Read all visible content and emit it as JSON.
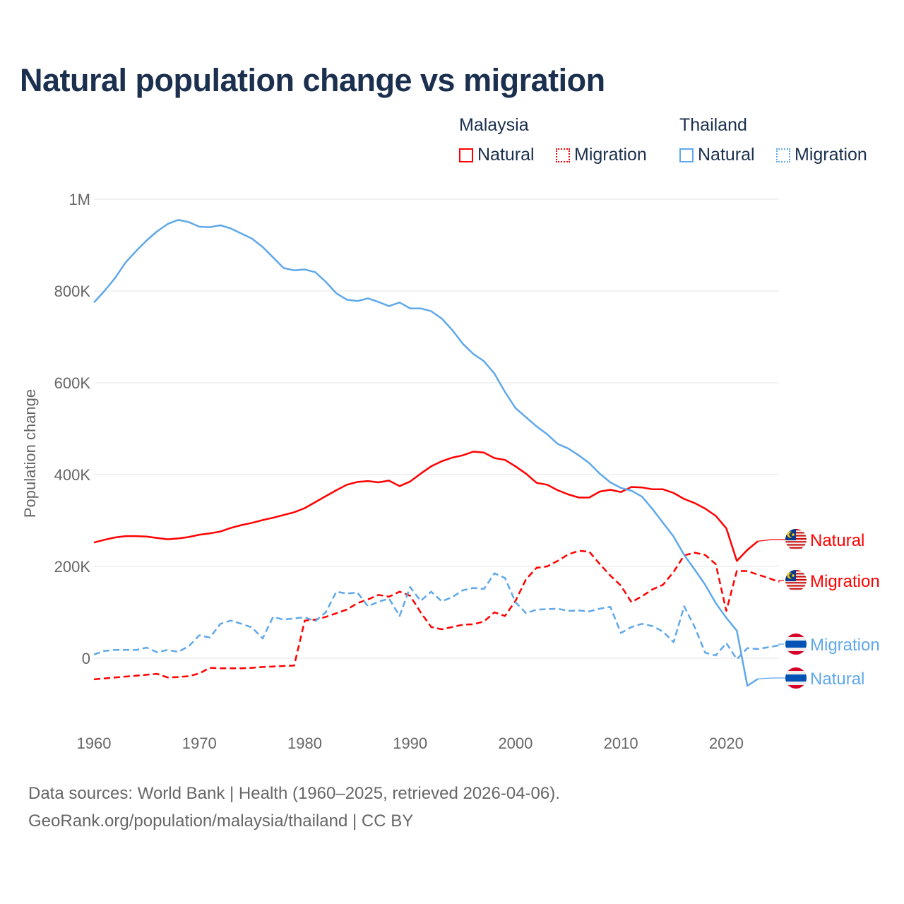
{
  "chart_data": {
    "type": "line",
    "title": "Natural population change vs migration",
    "ylabel": "Population change",
    "xlabel": "",
    "ylim": [
      -100000,
      1000000
    ],
    "xlim": [
      1960,
      2025
    ],
    "grid": true,
    "y_ticks": [
      {
        "value": 0,
        "label": "0"
      },
      {
        "value": 200000,
        "label": "200K"
      },
      {
        "value": 400000,
        "label": "400K"
      },
      {
        "value": 600000,
        "label": "600K"
      },
      {
        "value": 800000,
        "label": "800K"
      },
      {
        "value": 1000000,
        "label": "1M"
      }
    ],
    "x_ticks": [
      1960,
      1970,
      1980,
      1990,
      2000,
      2010,
      2020
    ],
    "legend": {
      "placement": "top-right",
      "groups": [
        {
          "country": "Malaysia",
          "items": [
            "Natural",
            "Migration"
          ]
        },
        {
          "country": "Thailand",
          "items": [
            "Natural",
            "Migration"
          ]
        }
      ]
    },
    "series": [
      {
        "name": "Malaysia Natural",
        "country": "Malaysia",
        "kind": "Natural",
        "label": "Natural",
        "color": "#ff0000",
        "dashed": false,
        "start": 1960,
        "values_k": [
          252,
          258,
          263,
          266,
          266,
          265,
          262,
          259,
          261,
          264,
          269,
          272,
          276,
          284,
          290,
          295,
          301,
          306,
          312,
          318,
          327,
          340,
          353,
          366,
          378,
          384,
          386,
          383,
          387,
          375,
          385,
          402,
          418,
          429,
          437,
          442,
          450,
          448,
          436,
          432,
          418,
          402,
          382,
          378,
          366,
          357,
          350,
          350,
          363,
          367,
          362,
          373,
          372,
          368,
          368,
          360,
          347,
          338,
          326,
          310,
          283,
          212,
          236,
          255
        ]
      },
      {
        "name": "Malaysia Migration",
        "country": "Malaysia",
        "kind": "Migration",
        "label": "Migration",
        "color": "#ff0000",
        "dashed": true,
        "start": 1960,
        "values_k": [
          -46,
          -44,
          -42,
          -40,
          -38,
          -36,
          -34,
          -42,
          -41,
          -39,
          -33,
          -21,
          -22,
          -22,
          -22,
          -21,
          -19,
          -18,
          -17,
          -16,
          82,
          84,
          90,
          98,
          106,
          120,
          128,
          138,
          134,
          145,
          136,
          100,
          68,
          63,
          68,
          73,
          74,
          80,
          100,
          92,
          125,
          172,
          197,
          200,
          212,
          226,
          234,
          232,
          205,
          180,
          158,
          122,
          135,
          150,
          160,
          188,
          224,
          230,
          225,
          205,
          103,
          190,
          190,
          182,
          175,
          166
        ]
      },
      {
        "name": "Thailand Migration",
        "country": "Thailand",
        "kind": "Migration",
        "label": "Migration",
        "color": "#5fa8ea",
        "dashed": true,
        "start": 1960,
        "values_k": [
          8,
          16,
          18,
          18,
          18,
          23,
          13,
          18,
          14,
          26,
          50,
          45,
          75,
          82,
          75,
          67,
          43,
          90,
          84,
          87,
          89,
          81,
          100,
          145,
          141,
          143,
          113,
          123,
          130,
          92,
          155,
          125,
          145,
          124,
          133,
          148,
          153,
          151,
          185,
          175,
          122,
          98,
          106,
          107,
          108,
          103,
          104,
          102,
          108,
          112,
          55,
          68,
          75,
          70,
          58,
          35,
          113,
          68,
          12,
          6,
          33,
          -2,
          22,
          20,
          24,
          28
        ]
      },
      {
        "name": "Thailand Natural",
        "country": "Thailand",
        "kind": "Natural",
        "label": "Natural",
        "color": "#5fa8ea",
        "dashed": false,
        "start": 1960,
        "values_k": [
          775,
          800,
          828,
          862,
          887,
          910,
          930,
          946,
          955,
          950,
          940,
          939,
          943,
          936,
          925,
          914,
          896,
          873,
          850,
          845,
          847,
          841,
          820,
          795,
          781,
          778,
          784,
          776,
          767,
          775,
          762,
          762,
          756,
          740,
          715,
          685,
          663,
          647,
          620,
          580,
          545,
          525,
          505,
          488,
          467,
          457,
          442,
          425,
          402,
          383,
          371,
          365,
          352,
          325,
          295,
          265,
          225,
          193,
          160,
          120,
          88,
          60,
          -60,
          -45
        ]
      }
    ]
  },
  "footer": {
    "line1": "Data sources: World Bank | Health (1960–2025, retrieved 2026-04-06).",
    "line2": "GeoRank.org/population/malaysia/thailand | CC BY"
  }
}
